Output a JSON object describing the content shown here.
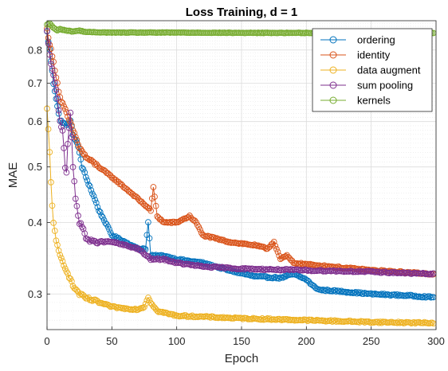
{
  "chart_data": {
    "type": "line",
    "title": "Loss Training, d = 1",
    "xlabel": "Epoch",
    "ylabel": "MAE",
    "xlim": [
      0,
      300
    ],
    "ylim": [
      0.26,
      0.9
    ],
    "y_scale": "log",
    "grid": true,
    "minor_grid": true,
    "legend_position": "top-right",
    "marker": "open-circle",
    "x_ticks": [
      0,
      50,
      100,
      150,
      200,
      250,
      300
    ],
    "x_tick_labels": [
      "0",
      "50",
      "100",
      "150",
      "200",
      "250",
      "300"
    ],
    "y_ticks": [
      0.3,
      0.4,
      0.5,
      0.6,
      0.7,
      0.8
    ],
    "y_tick_labels": [
      "0.3",
      "0.4",
      "0.5",
      "0.6",
      "0.7",
      "0.8"
    ],
    "x_values": "epoch 0..300, one point per epoch",
    "series": [
      {
        "name": "ordering",
        "color": "#0072BD",
        "keypoints": [
          [
            0,
            0.86
          ],
          [
            2,
            0.8
          ],
          [
            5,
            0.7
          ],
          [
            8,
            0.64
          ],
          [
            10,
            0.6
          ],
          [
            12,
            0.6
          ],
          [
            15,
            0.59
          ],
          [
            18,
            0.6
          ],
          [
            20,
            0.57
          ],
          [
            23,
            0.55
          ],
          [
            25,
            0.53
          ],
          [
            27,
            0.5
          ],
          [
            30,
            0.48
          ],
          [
            35,
            0.45
          ],
          [
            40,
            0.42
          ],
          [
            45,
            0.4
          ],
          [
            50,
            0.38
          ],
          [
            60,
            0.37
          ],
          [
            70,
            0.36
          ],
          [
            76,
            0.36
          ],
          [
            78,
            0.4
          ],
          [
            80,
            0.35
          ],
          [
            90,
            0.35
          ],
          [
            100,
            0.345
          ],
          [
            120,
            0.34
          ],
          [
            140,
            0.33
          ],
          [
            160,
            0.322
          ],
          [
            180,
            0.32
          ],
          [
            190,
            0.325
          ],
          [
            200,
            0.318
          ],
          [
            205,
            0.31
          ],
          [
            210,
            0.305
          ],
          [
            220,
            0.304
          ],
          [
            250,
            0.3
          ],
          [
            280,
            0.298
          ],
          [
            298,
            0.296
          ]
        ]
      },
      {
        "name": "identity",
        "color": "#D95319",
        "keypoints": [
          [
            0,
            0.87
          ],
          [
            2,
            0.82
          ],
          [
            5,
            0.76
          ],
          [
            8,
            0.7
          ],
          [
            10,
            0.66
          ],
          [
            15,
            0.62
          ],
          [
            20,
            0.58
          ],
          [
            25,
            0.54
          ],
          [
            30,
            0.52
          ],
          [
            40,
            0.5
          ],
          [
            50,
            0.48
          ],
          [
            60,
            0.46
          ],
          [
            70,
            0.44
          ],
          [
            80,
            0.42
          ],
          [
            82,
            0.46
          ],
          [
            85,
            0.41
          ],
          [
            90,
            0.4
          ],
          [
            100,
            0.4
          ],
          [
            105,
            0.405
          ],
          [
            110,
            0.41
          ],
          [
            115,
            0.4
          ],
          [
            120,
            0.38
          ],
          [
            140,
            0.37
          ],
          [
            160,
            0.365
          ],
          [
            170,
            0.36
          ],
          [
            175,
            0.37
          ],
          [
            180,
            0.345
          ],
          [
            185,
            0.35
          ],
          [
            190,
            0.34
          ],
          [
            200,
            0.338
          ],
          [
            250,
            0.33
          ],
          [
            298,
            0.325
          ]
        ]
      },
      {
        "name": "data augment",
        "color": "#EDB120",
        "keypoints": [
          [
            0,
            0.63
          ],
          [
            1,
            0.58
          ],
          [
            2,
            0.53
          ],
          [
            3,
            0.47
          ],
          [
            4,
            0.43
          ],
          [
            5,
            0.4
          ],
          [
            7,
            0.37
          ],
          [
            10,
            0.35
          ],
          [
            15,
            0.33
          ],
          [
            20,
            0.31
          ],
          [
            25,
            0.3
          ],
          [
            30,
            0.295
          ],
          [
            40,
            0.29
          ],
          [
            50,
            0.285
          ],
          [
            60,
            0.283
          ],
          [
            70,
            0.282
          ],
          [
            75,
            0.285
          ],
          [
            78,
            0.296
          ],
          [
            80,
            0.29
          ],
          [
            85,
            0.28
          ],
          [
            100,
            0.275
          ],
          [
            150,
            0.272
          ],
          [
            200,
            0.27
          ],
          [
            250,
            0.268
          ],
          [
            298,
            0.267
          ]
        ]
      },
      {
        "name": "sum pooling",
        "color": "#7E2F8E",
        "keypoints": [
          [
            0,
            0.86
          ],
          [
            2,
            0.78
          ],
          [
            5,
            0.72
          ],
          [
            8,
            0.66
          ],
          [
            10,
            0.6
          ],
          [
            12,
            0.58
          ],
          [
            14,
            0.5
          ],
          [
            15,
            0.49
          ],
          [
            16,
            0.55
          ],
          [
            18,
            0.62
          ],
          [
            20,
            0.5
          ],
          [
            22,
            0.44
          ],
          [
            25,
            0.4
          ],
          [
            28,
            0.39
          ],
          [
            30,
            0.375
          ],
          [
            35,
            0.37
          ],
          [
            40,
            0.37
          ],
          [
            50,
            0.37
          ],
          [
            60,
            0.365
          ],
          [
            70,
            0.36
          ],
          [
            80,
            0.345
          ],
          [
            90,
            0.345
          ],
          [
            100,
            0.34
          ],
          [
            120,
            0.335
          ],
          [
            150,
            0.332
          ],
          [
            200,
            0.33
          ],
          [
            250,
            0.328
          ],
          [
            298,
            0.325
          ]
        ]
      },
      {
        "name": "kernels",
        "color": "#77AC30",
        "keypoints": [
          [
            0,
            0.885
          ],
          [
            2,
            0.89
          ],
          [
            5,
            0.875
          ],
          [
            8,
            0.865
          ],
          [
            10,
            0.87
          ],
          [
            15,
            0.865
          ],
          [
            20,
            0.862
          ],
          [
            25,
            0.865
          ],
          [
            30,
            0.86
          ],
          [
            50,
            0.858
          ],
          [
            100,
            0.858
          ],
          [
            150,
            0.857
          ],
          [
            200,
            0.857
          ],
          [
            250,
            0.857
          ],
          [
            298,
            0.856
          ]
        ]
      }
    ]
  }
}
